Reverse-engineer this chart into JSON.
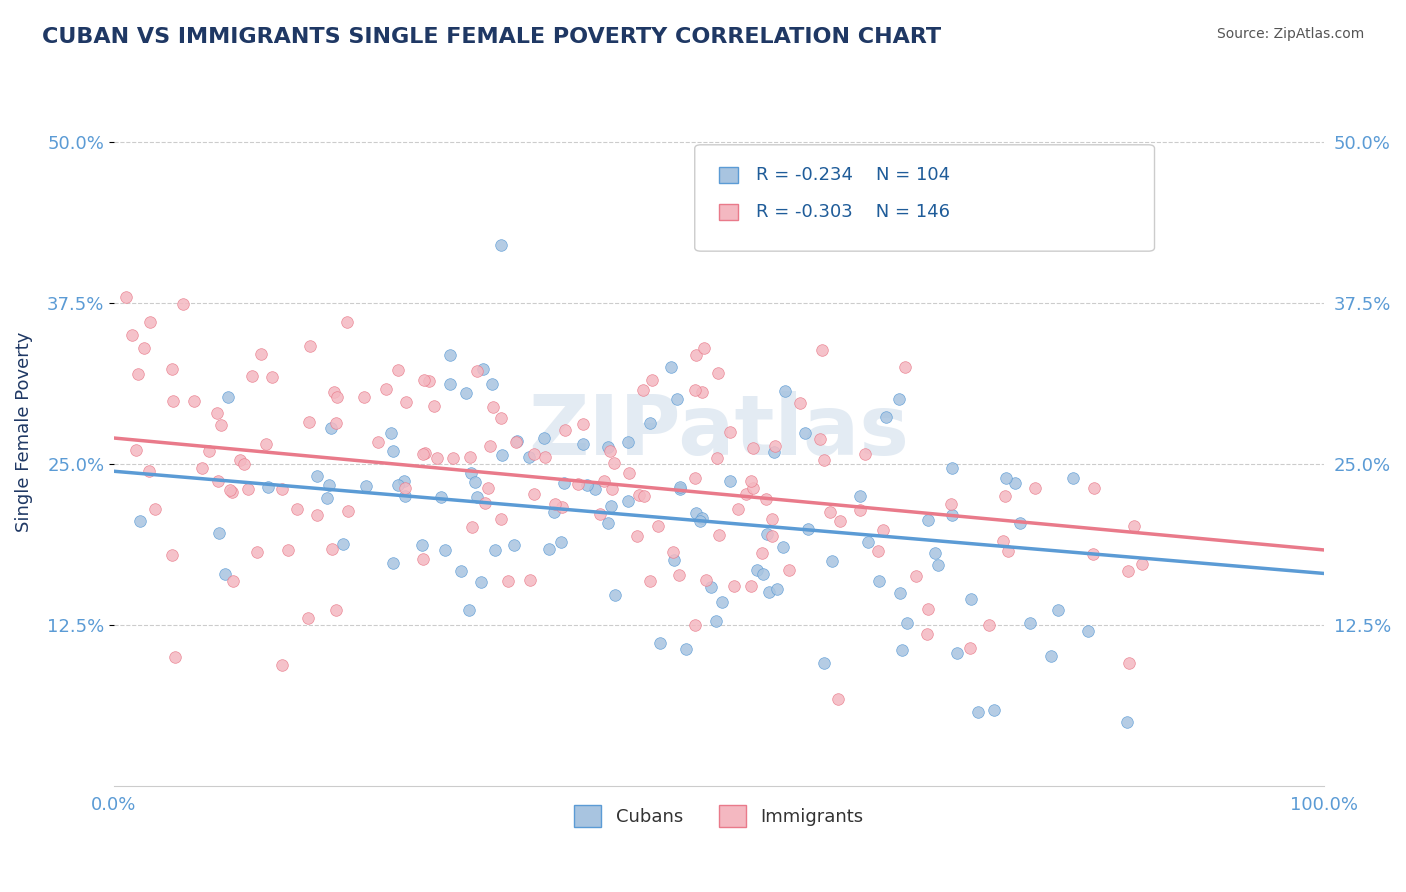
{
  "title": "CUBAN VS IMMIGRANTS SINGLE FEMALE POVERTY CORRELATION CHART",
  "source": "Source: ZipAtlas.com",
  "ylabel": "Single Female Poverty",
  "xlabel": "",
  "xlim": [
    0.0,
    1.0
  ],
  "ylim": [
    0.0,
    0.55
  ],
  "x_ticks": [
    0.0,
    1.0
  ],
  "x_tick_labels": [
    "0.0%",
    "100.0%"
  ],
  "y_ticks": [
    0.125,
    0.25,
    0.375,
    0.5
  ],
  "y_tick_labels": [
    "12.5%",
    "25.0%",
    "37.5%",
    "50.0%"
  ],
  "cubans_color": "#a8c4e0",
  "cubans_color_dark": "#5b9bd5",
  "immigrants_color": "#f4b8c1",
  "immigrants_color_dark": "#e97a8a",
  "cubans_R": -0.234,
  "cubans_N": 104,
  "immigrants_R": -0.303,
  "immigrants_N": 146,
  "legend_labels": [
    "Cubans",
    "Immigrants"
  ],
  "background_color": "#ffffff",
  "grid_color": "#cccccc",
  "watermark": "ZIPatlas",
  "title_color": "#1f3864",
  "title_fontsize": 16,
  "axis_label_color": "#1f3864",
  "tick_color": "#5b9bd5",
  "legend_R_color": "#1f5c99",
  "legend_N_color": "#1a1a1a"
}
